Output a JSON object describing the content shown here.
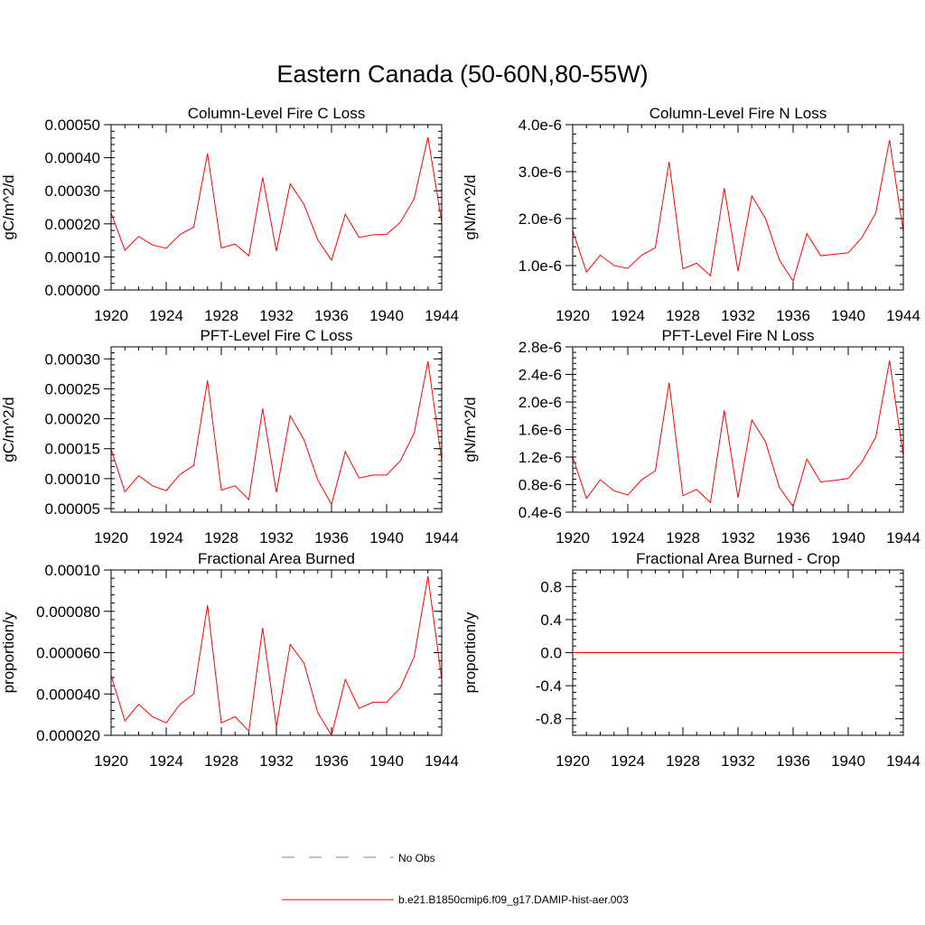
{
  "figure": {
    "title": "Eastern Canada (50-60N,80-55W)"
  },
  "legend": {
    "entries": [
      {
        "label": "No Obs",
        "color": "#7f7fc8",
        "style": "dashed"
      },
      {
        "label": "b.e21.B1850cmip6.f09_g17.DAMIP-hist-aer.003",
        "color": "#ff0000",
        "style": "solid"
      }
    ]
  },
  "chart_data": [
    {
      "type": "line",
      "title": "Column-Level Fire C Loss",
      "ylabel": "gC/m^2/d",
      "xlim": [
        1920,
        1944
      ],
      "ylim": [
        0,
        0.0005
      ],
      "xticks": [
        1920,
        1924,
        1928,
        1932,
        1936,
        1940,
        1944
      ],
      "xtick_labels": [
        "1920",
        "1924",
        "1928",
        "1932",
        "1936",
        "1940",
        "1944"
      ],
      "yticks": [
        0,
        0.0001,
        0.0002,
        0.0003,
        0.0004,
        0.0005
      ],
      "ytick_labels": [
        "0.00000",
        "0.00010",
        "0.00020",
        "0.00030",
        "0.00040",
        "0.00050"
      ],
      "series": [
        {
          "color": "#ff0000",
          "x": [
            1920,
            1921,
            1922,
            1923,
            1924,
            1925,
            1926,
            1927,
            1928,
            1929,
            1930,
            1931,
            1932,
            1933,
            1934,
            1935,
            1936,
            1937,
            1938,
            1939,
            1940,
            1941,
            1942,
            1943,
            1944
          ],
          "y": [
            0.000233,
            0.00012,
            0.000162,
            0.000136,
            0.000126,
            0.000168,
            0.00019,
            0.000413,
            0.000127,
            0.000139,
            0.000103,
            0.00034,
            0.000118,
            0.000321,
            0.000259,
            0.000152,
            9e-05,
            0.000229,
            0.000159,
            0.000167,
            0.000168,
            0.000205,
            0.000276,
            0.000462,
            0.000205
          ]
        }
      ]
    },
    {
      "type": "line",
      "title": "Column-Level Fire N Loss",
      "ylabel": "gN/m^2/d",
      "xlim": [
        1920,
        1944
      ],
      "ylim": [
        4.8e-07,
        4e-06
      ],
      "xticks": [
        1920,
        1924,
        1928,
        1932,
        1936,
        1940,
        1944
      ],
      "xtick_labels": [
        "1920",
        "1924",
        "1928",
        "1932",
        "1936",
        "1940",
        "1944"
      ],
      "yticks": [
        1e-06,
        2e-06,
        3e-06,
        4e-06
      ],
      "ytick_labels": [
        "1.0e-6",
        "2.0e-6",
        "3.0e-6",
        "4.0e-6"
      ],
      "series": [
        {
          "color": "#ff0000",
          "x": [
            1920,
            1921,
            1922,
            1923,
            1924,
            1925,
            1926,
            1927,
            1928,
            1929,
            1930,
            1931,
            1932,
            1933,
            1934,
            1935,
            1936,
            1937,
            1938,
            1939,
            1940,
            1941,
            1942,
            1943,
            1944
          ],
          "y": [
            1.74e-06,
            8.6e-07,
            1.22e-06,
            1e-06,
            9.4e-07,
            1.22e-06,
            1.38e-06,
            3.21e-06,
            9.3e-07,
            1.05e-06,
            7.8e-07,
            2.65e-06,
            8.8e-07,
            2.48e-06,
            2e-06,
            1.12e-06,
            6.7e-07,
            1.68e-06,
            1.21e-06,
            1.24e-06,
            1.27e-06,
            1.6e-06,
            2.12e-06,
            3.67e-06,
            1.72e-06
          ]
        }
      ]
    },
    {
      "type": "line",
      "title": "PFT-Level Fire C Loss",
      "ylabel": "gC/m^2/d",
      "xlim": [
        1920,
        1944
      ],
      "ylim": [
        4.4e-05,
        0.00032
      ],
      "xticks": [
        1920,
        1924,
        1928,
        1932,
        1936,
        1940,
        1944
      ],
      "xtick_labels": [
        "1920",
        "1924",
        "1928",
        "1932",
        "1936",
        "1940",
        "1944"
      ],
      "yticks": [
        5e-05,
        0.0001,
        0.00015,
        0.0002,
        0.00025,
        0.0003
      ],
      "ytick_labels": [
        "0.00005",
        "0.00010",
        "0.00015",
        "0.00020",
        "0.00025",
        "0.00030"
      ],
      "series": [
        {
          "color": "#ff0000",
          "x": [
            1920,
            1921,
            1922,
            1923,
            1924,
            1925,
            1926,
            1927,
            1928,
            1929,
            1930,
            1931,
            1932,
            1933,
            1934,
            1935,
            1936,
            1937,
            1938,
            1939,
            1940,
            1941,
            1942,
            1943,
            1944
          ],
          "y": [
            0.000149,
            7.8e-05,
            0.000105,
            8.8e-05,
            8e-05,
            0.000107,
            0.000122,
            0.000264,
            8.1e-05,
            8.8e-05,
            6.5e-05,
            0.000217,
            7.7e-05,
            0.000205,
            0.000165,
            9.8e-05,
            5.7e-05,
            0.000145,
            0.000101,
            0.000106,
            0.000106,
            0.00013,
            0.000176,
            0.000296,
            0.000131
          ]
        }
      ]
    },
    {
      "type": "line",
      "title": "PFT-Level Fire N Loss",
      "ylabel": "gN/m^2/d",
      "xlim": [
        1920,
        1944
      ],
      "ylim": [
        4e-07,
        2.8e-06
      ],
      "xticks": [
        1920,
        1924,
        1928,
        1932,
        1936,
        1940,
        1944
      ],
      "xtick_labels": [
        "1920",
        "1924",
        "1928",
        "1932",
        "1936",
        "1940",
        "1944"
      ],
      "yticks": [
        4e-07,
        8e-07,
        1.2e-06,
        1.6e-06,
        2e-06,
        2.4e-06,
        2.8e-06
      ],
      "ytick_labels": [
        "0.4e-6",
        "0.8e-6",
        "1.2e-6",
        "1.6e-6",
        "2.0e-6",
        "2.4e-6",
        "2.8e-6"
      ],
      "series": [
        {
          "color": "#ff0000",
          "x": [
            1920,
            1921,
            1922,
            1923,
            1924,
            1925,
            1926,
            1927,
            1928,
            1929,
            1930,
            1931,
            1932,
            1933,
            1934,
            1935,
            1936,
            1937,
            1938,
            1939,
            1940,
            1941,
            1942,
            1943,
            1944
          ],
          "y": [
            1.2e-06,
            6e-07,
            8.7e-07,
            7.1e-07,
            6.5e-07,
            8.7e-07,
            1e-06,
            2.28e-06,
            6.4e-07,
            7.3e-07,
            5.4e-07,
            1.88e-06,
            6.1e-07,
            1.74e-06,
            1.42e-06,
            7.6e-07,
            4.8e-07,
            1.17e-06,
            8.4e-07,
            8.6e-07,
            8.9e-07,
            1.13e-06,
            1.49e-06,
            2.6e-06,
            1.22e-06
          ]
        }
      ]
    },
    {
      "type": "line",
      "title": "Fractional Area Burned",
      "ylabel": "proportion/y",
      "xlim": [
        1920,
        1944
      ],
      "ylim": [
        2e-05,
        0.0001
      ],
      "xticks": [
        1920,
        1924,
        1928,
        1932,
        1936,
        1940,
        1944
      ],
      "xtick_labels": [
        "1920",
        "1924",
        "1928",
        "1932",
        "1936",
        "1940",
        "1944"
      ],
      "yticks": [
        2e-05,
        4e-05,
        6e-05,
        8e-05,
        0.0001
      ],
      "ytick_labels": [
        "0.000020",
        "0.000040",
        "0.000060",
        "0.000080",
        "0.00010"
      ],
      "series": [
        {
          "color": "#ff0000",
          "x": [
            1920,
            1921,
            1922,
            1923,
            1924,
            1925,
            1926,
            1927,
            1928,
            1929,
            1930,
            1931,
            1932,
            1933,
            1934,
            1935,
            1936,
            1937,
            1938,
            1939,
            1940,
            1941,
            1942,
            1943,
            1944
          ],
          "y": [
            4.9e-05,
            2.7e-05,
            3.5e-05,
            2.9e-05,
            2.6e-05,
            3.5e-05,
            4e-05,
            8.3e-05,
            2.6e-05,
            2.9e-05,
            2.2e-05,
            7.2e-05,
            2.4e-05,
            6.4e-05,
            5.5e-05,
            3.1e-05,
            2e-05,
            4.7e-05,
            3.3e-05,
            3.6e-05,
            3.6e-05,
            4.3e-05,
            5.8e-05,
            9.7e-05,
            4.7e-05
          ]
        }
      ]
    },
    {
      "type": "line",
      "title": "Fractional Area Burned - Crop",
      "ylabel": "proportion/y",
      "xlim": [
        1920,
        1944
      ],
      "ylim": [
        -1,
        1
      ],
      "xticks": [
        1920,
        1924,
        1928,
        1932,
        1936,
        1940,
        1944
      ],
      "xtick_labels": [
        "1920",
        "1924",
        "1928",
        "1932",
        "1936",
        "1940",
        "1944"
      ],
      "yticks": [
        -0.8,
        -0.4,
        0,
        0.4,
        0.8
      ],
      "ytick_labels": [
        "-0.8",
        "-0.4",
        "0.0",
        "0.4",
        "0.8"
      ],
      "series": [
        {
          "color": "#ff0000",
          "x": [
            1920,
            1921,
            1922,
            1923,
            1924,
            1925,
            1926,
            1927,
            1928,
            1929,
            1930,
            1931,
            1932,
            1933,
            1934,
            1935,
            1936,
            1937,
            1938,
            1939,
            1940,
            1941,
            1942,
            1943,
            1944
          ],
          "y": [
            0,
            0,
            0,
            0,
            0,
            0,
            0,
            0,
            0,
            0,
            0,
            0,
            0,
            0,
            0,
            0,
            0,
            0,
            0,
            0,
            0,
            0,
            0,
            0,
            0
          ]
        }
      ]
    }
  ]
}
